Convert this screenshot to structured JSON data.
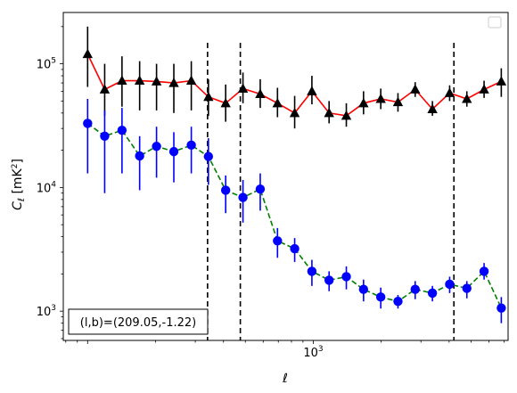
{
  "chart_data": {
    "type": "scatter",
    "title": "",
    "xlabel": "ℓ",
    "ylabel": "C_ℓ [mK²]",
    "xscale": "log",
    "yscale": "log",
    "xlim": [
      78,
      7300
    ],
    "ylim": [
      580,
      260000
    ],
    "x_tick_labels": [
      {
        "value": 1000,
        "base": "10",
        "exp": "3"
      }
    ],
    "y_tick_labels": [
      {
        "value": 1000,
        "base": "10",
        "exp": "3"
      },
      {
        "value": 10000,
        "base": "10",
        "exp": "4"
      },
      {
        "value": 100000,
        "base": "10",
        "exp": "5"
      }
    ],
    "grid": false,
    "legend": {
      "placement": "top-right",
      "entries": []
    },
    "vlines": [
      340,
      475,
      4200
    ],
    "annotation": "(l,b)=(209.05,-1.22)",
    "series": [
      {
        "color": "#ff0000",
        "marker": "triangle",
        "marker_color": "#000000",
        "errorbar_color": "#000000",
        "line_style": "solid",
        "x": [
          100,
          119,
          142,
          170,
          202,
          241,
          288,
          343,
          409,
          488,
          582,
          694,
          827,
          986,
          1175,
          1401,
          1670,
          1991,
          2373,
          2829,
          3373,
          4021,
          4793,
          5714,
          6811
        ],
        "y": [
          120000,
          62000,
          73000,
          73000,
          72000,
          70000,
          73000,
          54000,
          48000,
          63000,
          57000,
          48000,
          40000,
          60000,
          40000,
          38000,
          48000,
          52000,
          49000,
          62000,
          43000,
          58000,
          52000,
          62000,
          72000
        ],
        "y_low": [
          65000,
          38000,
          45000,
          42000,
          42000,
          40000,
          42000,
          38000,
          34000,
          48000,
          44000,
          37000,
          30000,
          47000,
          33000,
          31000,
          39000,
          43000,
          41000,
          54000,
          38000,
          50000,
          45000,
          53000,
          54000
        ],
        "y_high": [
          200000,
          100000,
          115000,
          105000,
          100000,
          100000,
          105000,
          75000,
          68000,
          85000,
          75000,
          64000,
          55000,
          80000,
          50000,
          48000,
          60000,
          63000,
          58000,
          71000,
          50000,
          67000,
          60000,
          73000,
          92000
        ]
      },
      {
        "color": "#008000",
        "marker": "circle",
        "marker_color": "#0000ff",
        "errorbar_color": "#0000ff",
        "line_style": "dashed",
        "x": [
          100,
          119,
          142,
          170,
          202,
          241,
          288,
          343,
          409,
          488,
          582,
          694,
          827,
          986,
          1175,
          1401,
          1670,
          1991,
          2373,
          2829,
          3373,
          4021,
          4793,
          5714,
          6811
        ],
        "y": [
          33000,
          26000,
          29000,
          18000,
          21500,
          19500,
          22000,
          17800,
          9500,
          8300,
          9700,
          3700,
          3200,
          2100,
          1780,
          1900,
          1500,
          1300,
          1200,
          1500,
          1400,
          1650,
          1530,
          2100,
          1060
        ],
        "y_low": [
          13000,
          9000,
          13000,
          9500,
          12000,
          11000,
          13000,
          10500,
          6200,
          5200,
          6500,
          2700,
          2500,
          1600,
          1450,
          1500,
          1200,
          1050,
          1050,
          1250,
          1200,
          1400,
          1270,
          1800,
          800
        ],
        "y_high": [
          52000,
          42000,
          44000,
          26000,
          31000,
          28000,
          31000,
          25000,
          12500,
          11500,
          13000,
          4700,
          3900,
          2600,
          2100,
          2300,
          1800,
          1550,
          1350,
          1750,
          1600,
          1900,
          1750,
          2450,
          1300
        ]
      }
    ]
  }
}
